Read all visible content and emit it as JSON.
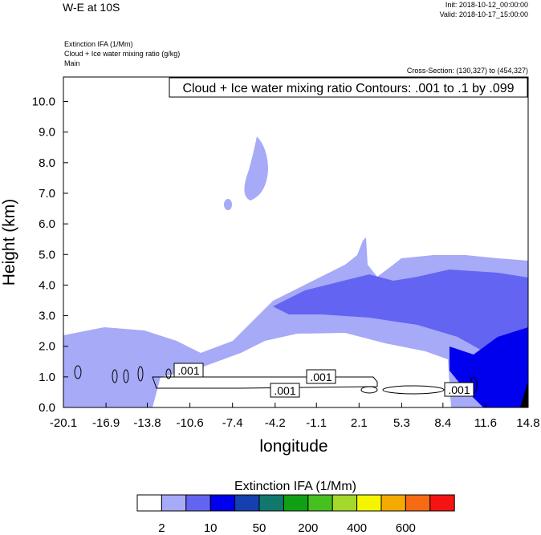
{
  "header": {
    "title": "W-E at 10S",
    "init": "Init: 2018-10-12_00:00:00",
    "valid": "Valid: 2018-10-17_15:00:00",
    "field1": "Extinction IFA   (1/Mm)",
    "field2": "Cloud + Ice water mixing ratio   (g/kg)",
    "field3": "Main",
    "cross_section": "Cross-Section: (130,327) to (454,327)"
  },
  "chart_data": {
    "type": "contour",
    "contour_title": "Cloud + Ice water mixing ratio Contours: .001 to .1 by .099",
    "contour_labels": [
      ".001",
      ".001",
      ".001",
      ".001"
    ],
    "x_label": "longitude",
    "y_label": "Height (km)",
    "xlim": [
      -20.1,
      14.8
    ],
    "xticks": [
      -20.1,
      -16.9,
      -13.8,
      -10.6,
      -7.4,
      -4.2,
      -1.1,
      2.1,
      5.3,
      8.4,
      11.6,
      14.8
    ],
    "ylim": [
      0,
      10.8
    ],
    "yticks": [
      {
        "value": 0,
        "label": "0.0"
      },
      {
        "value": 1,
        "label": "1.0"
      },
      {
        "value": 2,
        "label": "2.0"
      },
      {
        "value": 3,
        "label": "3.0"
      },
      {
        "value": 4,
        "label": "4.0"
      },
      {
        "value": 5,
        "label": "5.0"
      },
      {
        "value": 6,
        "label": "6.0"
      },
      {
        "value": 7,
        "label": "7.0"
      },
      {
        "value": 8,
        "label": "8.0"
      },
      {
        "value": 9,
        "label": "9.0"
      },
      {
        "value": 10,
        "label": "10.0"
      }
    ],
    "colorbar": {
      "title": "Extinction IFA  (1/Mm)",
      "colors": [
        "#ffffff",
        "#a6aaf7",
        "#6464f2",
        "#0000ee",
        "#1440b0",
        "#12786e",
        "#10a014",
        "#46c01e",
        "#a4d82a",
        "#f5f500",
        "#f5aa00",
        "#f56a12",
        "#f51414"
      ],
      "labels": [
        2,
        10,
        50,
        200,
        400,
        600
      ]
    }
  }
}
